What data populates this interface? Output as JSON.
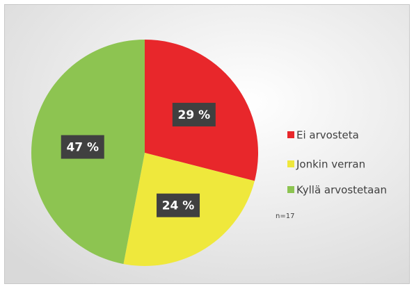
{
  "chart_data": {
    "type": "pie",
    "categories": [
      "Ei arvosteta",
      "Jonkin verran",
      "Kyllä arvostetaan"
    ],
    "values": [
      29,
      24,
      47
    ],
    "value_labels": [
      "29 %",
      "24 %",
      "47 %"
    ],
    "colors": [
      "#e8272b",
      "#efe83c",
      "#8dc451"
    ],
    "legend": "right",
    "annotation": "n=17"
  }
}
